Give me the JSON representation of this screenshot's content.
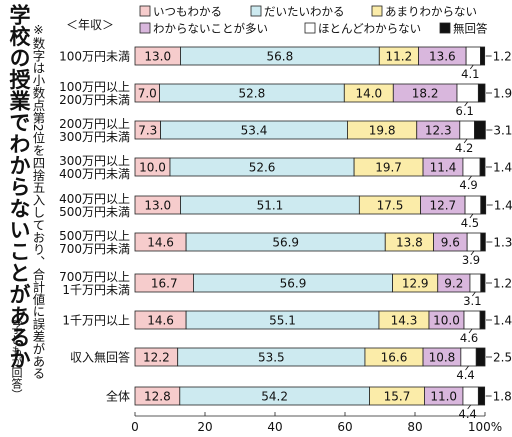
{
  "title": "学校の授業でわからないことがあるか",
  "subtitle": "（子どもが回答）",
  "note": "※数字は小数点第2位を四捨五入しており、合計値に誤差がある",
  "chart_data": {
    "type": "bar",
    "orientation": "horizontal",
    "stacked": true,
    "category_header": "＜年収＞",
    "categories": [
      "100万円未満",
      "100万円以上 200万円未満",
      "200万円以上 300万円未満",
      "300万円以上 400万円未満",
      "400万円以上 500万円未満",
      "500万円以上 700万円未満",
      "700万円以上 1千万円未満",
      "1千万円以上",
      "収入無回答",
      "全体"
    ],
    "series": [
      {
        "name": "いつもわかる",
        "color": "#f6cccc",
        "values": [
          13.0,
          7.0,
          7.3,
          10.0,
          13.0,
          14.6,
          16.7,
          14.6,
          12.2,
          12.8
        ]
      },
      {
        "name": "だいたいわかる",
        "color": "#cdeaf0",
        "values": [
          56.8,
          52.8,
          53.4,
          52.6,
          51.1,
          56.9,
          56.9,
          55.1,
          53.5,
          54.2
        ]
      },
      {
        "name": "あまりわからない",
        "color": "#fbeca9",
        "values": [
          11.2,
          14.0,
          19.8,
          19.7,
          17.5,
          13.8,
          12.9,
          14.3,
          16.6,
          15.7
        ]
      },
      {
        "name": "わからないことが多い",
        "color": "#d9b7dd",
        "values": [
          13.6,
          18.2,
          12.3,
          11.4,
          12.7,
          9.6,
          9.2,
          10.0,
          10.8,
          11.0
        ]
      },
      {
        "name": "ほとんどわからない",
        "color": "#ffffff",
        "values": [
          4.1,
          6.1,
          4.2,
          4.9,
          4.5,
          3.9,
          3.1,
          4.6,
          4.4,
          4.4
        ]
      },
      {
        "name": "無回答",
        "color": "#111111",
        "values": [
          1.2,
          1.9,
          3.1,
          1.4,
          1.4,
          1.3,
          1.2,
          1.4,
          2.5,
          1.8
        ]
      }
    ],
    "xlim": [
      0,
      100
    ],
    "x_ticks": [
      "0",
      "20",
      "40",
      "60",
      "80",
      "100%"
    ],
    "grid": false,
    "legend": "top"
  }
}
